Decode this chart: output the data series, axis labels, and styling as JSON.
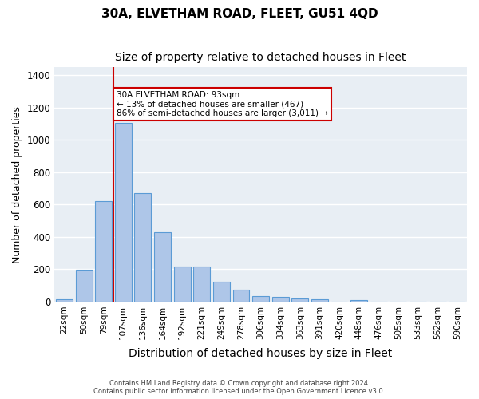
{
  "title": "30A, ELVETHAM ROAD, FLEET, GU51 4QD",
  "subtitle": "Size of property relative to detached houses in Fleet",
  "xlabel": "Distribution of detached houses by size in Fleet",
  "ylabel": "Number of detached properties",
  "categories": [
    "22sqm",
    "50sqm",
    "79sqm",
    "107sqm",
    "136sqm",
    "164sqm",
    "192sqm",
    "221sqm",
    "249sqm",
    "278sqm",
    "306sqm",
    "334sqm",
    "363sqm",
    "391sqm",
    "420sqm",
    "448sqm",
    "476sqm",
    "505sqm",
    "533sqm",
    "562sqm",
    "590sqm"
  ],
  "values": [
    15,
    195,
    620,
    1105,
    670,
    430,
    218,
    218,
    125,
    75,
    32,
    30,
    18,
    12,
    0,
    10,
    0,
    0,
    0,
    0,
    0
  ],
  "bar_color": "#aec6e8",
  "bar_edge_color": "#5b9bd5",
  "background_color": "#e8eef4",
  "grid_color": "#ffffff",
  "property_size": 93,
  "property_label": "30A ELVETHAM ROAD: 93sqm",
  "annotation_line1": "← 13% of detached houses are smaller (467)",
  "annotation_line2": "86% of semi-detached houses are larger (3,011) →",
  "vline_position": 3,
  "vline_color": "#cc0000",
  "ylim": [
    0,
    1450
  ],
  "yticks": [
    0,
    200,
    400,
    600,
    800,
    1000,
    1200,
    1400
  ],
  "footer_line1": "Contains HM Land Registry data © Crown copyright and database right 2024.",
  "footer_line2": "Contains public sector information licensed under the Open Government Licence v3.0.",
  "title_fontsize": 11,
  "subtitle_fontsize": 10,
  "xlabel_fontsize": 10,
  "ylabel_fontsize": 9
}
